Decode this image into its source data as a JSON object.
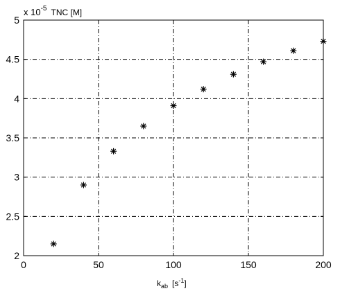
{
  "chart_data": {
    "type": "scatter",
    "marker": "asterisk",
    "marker_color": "#000000",
    "x": [
      20,
      40,
      60,
      80,
      100,
      120,
      140,
      160,
      180,
      200
    ],
    "y": [
      2.15,
      2.9,
      3.33,
      3.65,
      3.91,
      4.12,
      4.31,
      4.47,
      4.61,
      4.73
    ],
    "xlim": [
      0,
      200
    ],
    "ylim": [
      2,
      5
    ],
    "x_ticks": [
      "0",
      "50",
      "100",
      "150",
      "200"
    ],
    "y_ticks": [
      "2",
      "2.5",
      "3",
      "3.5",
      "4",
      "4.5",
      "5"
    ],
    "x_tick_values": [
      0,
      50,
      100,
      150,
      200
    ],
    "y_tick_values": [
      2,
      2.5,
      3,
      3.5,
      4,
      4.5,
      5
    ],
    "grid": true,
    "grid_style": "dash-dot",
    "y_scale": {
      "prefix": "x 10",
      "exponent": "-5",
      "quantity": "TNC [M]"
    },
    "xlabel": {
      "main": "k",
      "subscript": "ab",
      "unit_prefix": "[s",
      "unit_exponent": "-1",
      "unit_suffix": "]"
    }
  }
}
